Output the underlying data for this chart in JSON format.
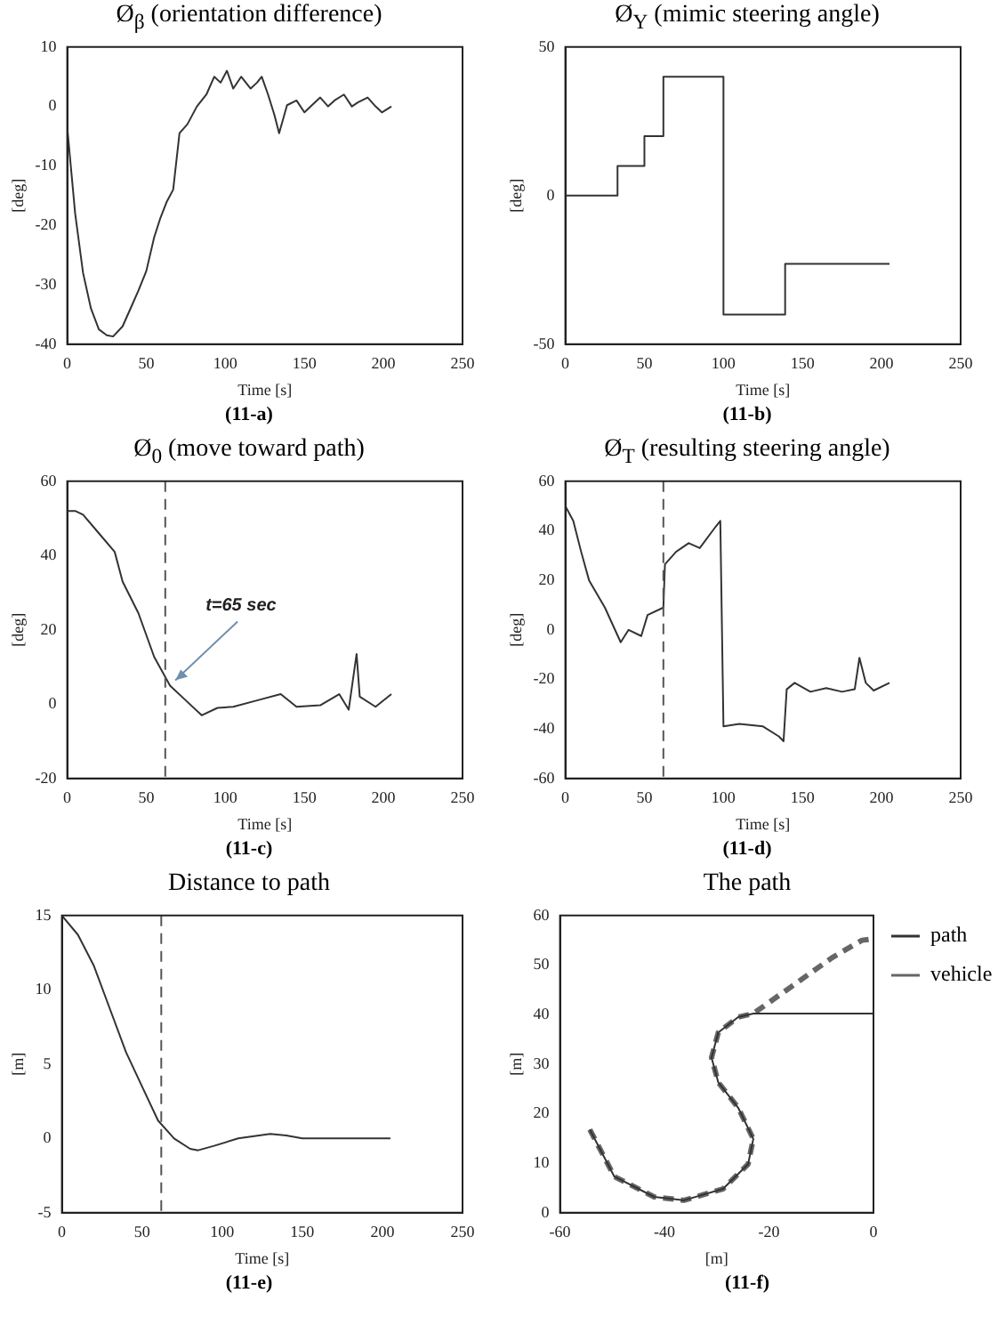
{
  "chart_data": [
    {
      "type": "line",
      "title": "Ø$_{β}$ (orientation difference)",
      "xlabel": "Time [s]",
      "ylabel": "[deg]",
      "annotations": [
        "(11-a)"
      ],
      "xlim": [
        0,
        250
      ],
      "xticks": [
        0,
        50,
        100,
        150,
        200,
        250
      ],
      "ylim": [
        -40,
        10
      ],
      "yticks": [
        -40,
        -30,
        -20,
        -10,
        0,
        10
      ],
      "grid": false,
      "marker": "none",
      "line_style": "solid",
      "series": [
        {
          "color": "#333333",
          "x": [
            0,
            5,
            10,
            15,
            20,
            25,
            29,
            35,
            40,
            45,
            50,
            55,
            59,
            63,
            67,
            71,
            76,
            82,
            88,
            93,
            97,
            101,
            105,
            110,
            116,
            120,
            123,
            127,
            131,
            134,
            139,
            145,
            150,
            154,
            160,
            165,
            169,
            175,
            180,
            184,
            190,
            195,
            199,
            205
          ],
          "values": [
            -3.5,
            -18,
            -28,
            -34,
            -37.5,
            -38.5,
            -38.7,
            -37,
            -34,
            -31,
            -27.7,
            -22,
            -18.7,
            -16,
            -14,
            -4.5,
            -3,
            0,
            2,
            5,
            4,
            6,
            3,
            5,
            3,
            4,
            5,
            2,
            -1.4,
            -4.5,
            0.2,
            1,
            -1,
            0,
            1.5,
            0,
            1,
            2,
            0,
            0.7,
            1.5,
            0,
            -1,
            0
          ]
        }
      ]
    },
    {
      "type": "step",
      "title": "Ø$_{Y}$ (mimic steering angle)",
      "xlabel": "Time [s]",
      "ylabel": "[deg]",
      "annotations": [
        "(11-b)"
      ],
      "xlim": [
        0,
        250
      ],
      "xticks": [
        0,
        50,
        100,
        150,
        200,
        250
      ],
      "ylim": [
        -50,
        50
      ],
      "yticks": [
        -50,
        0,
        50
      ],
      "grid": false,
      "marker": "none",
      "line_style": "solid",
      "series": [
        {
          "color": "#333333",
          "x": [
            0,
            33,
            50,
            62,
            100,
            139,
            205
          ],
          "values": [
            0,
            10,
            20,
            40,
            -40,
            -23,
            -23
          ]
        }
      ]
    },
    {
      "type": "line",
      "title": "Ø$_{0}$ (move toward path)",
      "xlabel": "Time [s]",
      "ylabel": "[deg]",
      "annotations": [
        "(11-c)",
        {
          "text": "t=65 sec",
          "x": 65,
          "y": 5
        }
      ],
      "xlim": [
        0,
        250
      ],
      "xticks": [
        0,
        50,
        100,
        150,
        200,
        250
      ],
      "ylim": [
        -20,
        60
      ],
      "yticks": [
        -20,
        0,
        20,
        40,
        60
      ],
      "grid": false,
      "marker": "none",
      "line_style": "solid",
      "ref_lines": [
        {
          "axis": "x",
          "value": 62,
          "line_style": "dashed",
          "color": "#555555"
        }
      ],
      "series": [
        {
          "color": "#333333",
          "x": [
            0,
            5,
            10,
            20,
            30,
            35,
            45,
            55,
            65,
            75,
            85,
            95,
            105,
            120,
            135,
            145,
            160,
            172,
            178,
            183,
            185,
            195,
            205
          ],
          "values": [
            52,
            52,
            51,
            46,
            41,
            33,
            24.5,
            12.7,
            5,
            1,
            -3,
            -1,
            -0.7,
            1,
            2.7,
            -0.7,
            -0.3,
            2.7,
            -1.5,
            13.5,
            2,
            -0.7,
            2.7
          ]
        }
      ]
    },
    {
      "type": "line",
      "title": "Ø$_{T}$ (resulting steering angle)",
      "xlabel": "Time [s]",
      "ylabel": "[deg]",
      "annotations": [
        "(11-d)"
      ],
      "xlim": [
        0,
        250
      ],
      "xticks": [
        0,
        50,
        100,
        150,
        200,
        250
      ],
      "ylim": [
        -60,
        60
      ],
      "yticks": [
        -60,
        -40,
        -20,
        0,
        20,
        40,
        60
      ],
      "grid": false,
      "marker": "none",
      "line_style": "solid",
      "ref_lines": [
        {
          "axis": "x",
          "value": 62,
          "line_style": "dashed",
          "color": "#555555"
        }
      ],
      "series": [
        {
          "color": "#333333",
          "x": [
            0,
            5,
            10,
            15,
            25,
            35,
            40,
            48,
            52,
            62,
            63,
            70,
            78,
            85,
            95,
            98,
            100,
            110,
            125,
            135,
            138,
            140,
            145,
            155,
            165,
            175,
            183,
            186,
            190,
            195,
            205
          ],
          "values": [
            50,
            44,
            31.5,
            20,
            9,
            -5,
            0,
            -2.5,
            6,
            9,
            26.5,
            31.5,
            35,
            33,
            41.6,
            44,
            -39,
            -38,
            -39,
            -43,
            -45,
            -24,
            -21.4,
            -25,
            -23.5,
            -25,
            -24,
            -11.3,
            -21.4,
            -24.5,
            -21.4
          ]
        }
      ]
    },
    {
      "type": "line",
      "title": "Distance to path",
      "xlabel": "Time [s]",
      "ylabel": "[m]",
      "annotations": [
        "(11-e)"
      ],
      "xlim": [
        0,
        250
      ],
      "xticks": [
        0,
        50,
        100,
        150,
        200,
        250
      ],
      "ylim": [
        -5,
        15
      ],
      "yticks": [
        -5,
        0,
        5,
        10,
        15
      ],
      "grid": false,
      "marker": "none",
      "line_style": "solid",
      "ref_lines": [
        {
          "axis": "x",
          "value": 62,
          "line_style": "dashed",
          "color": "#555555"
        }
      ],
      "series": [
        {
          "color": "#333333",
          "x": [
            0,
            10,
            20,
            30,
            40,
            50,
            60,
            70,
            80,
            85,
            95,
            110,
            130,
            140,
            150,
            205
          ],
          "values": [
            15,
            13.7,
            11.6,
            8.7,
            5.8,
            3.5,
            1.2,
            0,
            -0.7,
            -0.8,
            -0.5,
            0,
            0.3,
            0.2,
            0,
            0
          ]
        }
      ]
    },
    {
      "type": "line",
      "title": "The path",
      "xlabel": "[m]",
      "ylabel": "[m]",
      "annotations": [
        "(11-f)"
      ],
      "xlim": [
        -60,
        0
      ],
      "xticks": [
        -60,
        -40,
        -20,
        0
      ],
      "ylim": [
        0,
        60
      ],
      "yticks": [
        0,
        10,
        20,
        30,
        40,
        50,
        60
      ],
      "grid": false,
      "marker": "none",
      "legend": "right",
      "series": [
        {
          "name": "path",
          "color": "#333333",
          "line_style": "solid",
          "x": [
            -54.3,
            -49.6,
            -42,
            -36.3,
            -28.8,
            -24,
            -23,
            -25.9,
            -29.7,
            -31,
            -29.7,
            -25.9,
            -23,
            0
          ],
          "values": [
            16.8,
            7.3,
            3.2,
            2.5,
            4.8,
            9.8,
            14.9,
            21.2,
            26.3,
            31.3,
            36.4,
            39.5,
            40.2,
            40.2
          ]
        },
        {
          "name": "vehicle",
          "color": "#666666",
          "line_style": "dashed",
          "x": [
            -54.3,
            -49.6,
            -42,
            -36.3,
            -28.8,
            -24,
            -23,
            -25.9,
            -29.7,
            -31,
            -29.7,
            -25.9,
            -23,
            -15.5,
            -7.9,
            -2.2,
            0
          ],
          "values": [
            16.8,
            7.3,
            3.2,
            2.5,
            4.8,
            9.8,
            14.9,
            21.2,
            26.3,
            31.3,
            36.4,
            39.5,
            40.2,
            45.8,
            51.5,
            55,
            55.3
          ]
        }
      ]
    }
  ]
}
